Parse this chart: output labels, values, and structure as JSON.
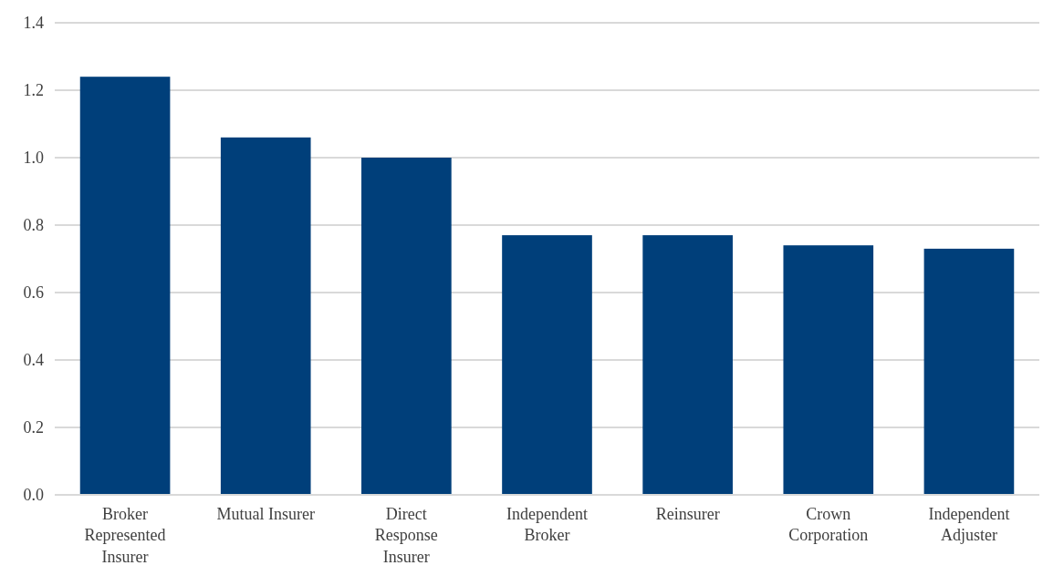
{
  "chart_data": {
    "type": "bar",
    "categories": [
      "Broker Represented Insurer",
      "Mutual Insurer",
      "Direct Response Insurer",
      "Independent Broker",
      "Reinsurer",
      "Crown Corporation",
      "Independent Adjuster"
    ],
    "values": [
      1.24,
      1.06,
      1.0,
      0.77,
      0.77,
      0.74,
      0.73
    ],
    "color": "#003f7a",
    "ylim": [
      0,
      1.4
    ],
    "yticks": [
      {
        "value": 0,
        "label": "0.0"
      },
      {
        "value": 0.2,
        "label": "0.2"
      },
      {
        "value": 0.4,
        "label": "0.4"
      },
      {
        "value": 0.6,
        "label": "0.6"
      },
      {
        "value": 0.8,
        "label": "0.8"
      },
      {
        "value": 1,
        "label": "1.0"
      },
      {
        "value": 1.2,
        "label": "1.2"
      },
      {
        "value": 1.4,
        "label": "1.4"
      }
    ],
    "grid": "y"
  }
}
